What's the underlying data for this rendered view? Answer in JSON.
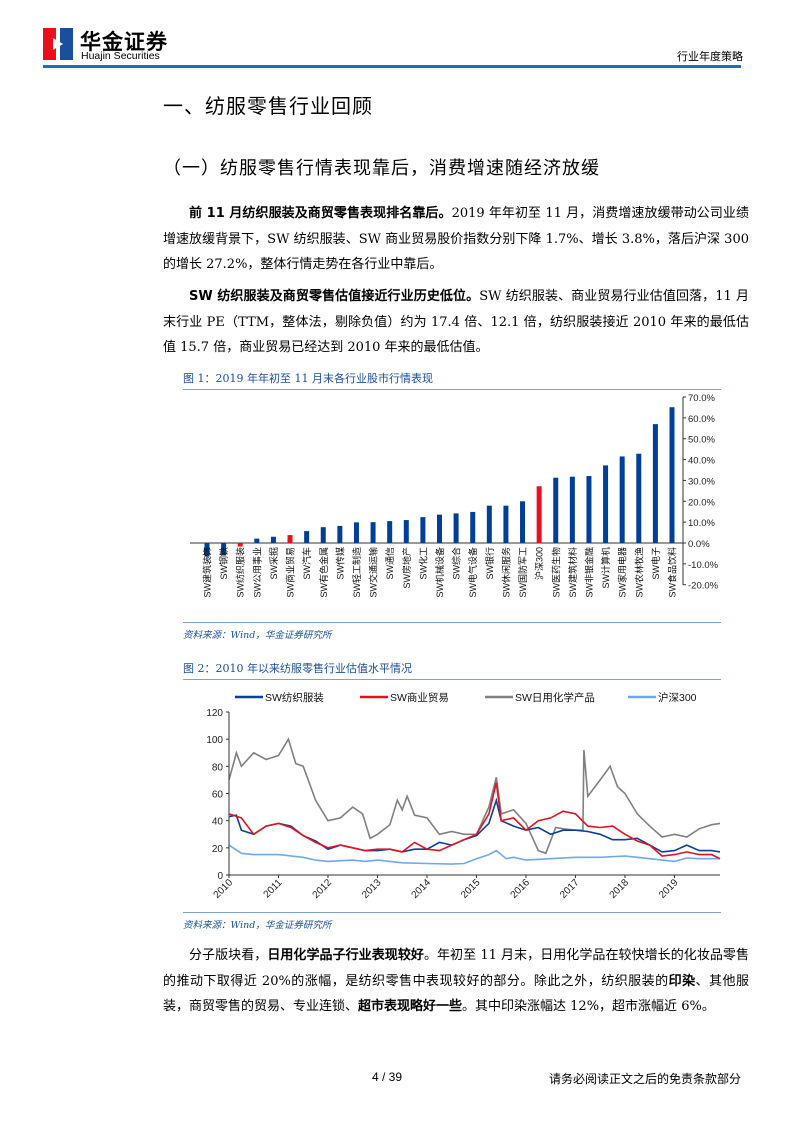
{
  "header": {
    "logo_cn": "华金证券",
    "logo_en": "Huajin Securities",
    "report_type": "行业年度策略"
  },
  "section_title": "一、纺服零售行业回顾",
  "subsection_title": "（一）纺服零售行情表现靠后，消费增速随经济放缓",
  "paragraphs": [
    {
      "segments": [
        {
          "text": "前 11 月纺织服装及商贸零售表现排名靠后。",
          "bold": true
        },
        {
          "text": "2019 年年初至 11 月，消费增速放缓带动公司业绩增速放缓背景下，SW 纺织服装、SW 商业贸易股价指数分别下降 1.7%、增长 3.8%，落后沪深 300 的增长 27.2%，整体行情走势在各行业中靠后。",
          "bold": false
        }
      ]
    },
    {
      "segments": [
        {
          "text": "SW 纺织服装及商贸零售估值接近行业历史低位。",
          "bold": true
        },
        {
          "text": "SW 纺织服装、商业贸易行业估值回落，11 月末行业 PE（TTM，整体法，剔除负值）约为 17.4 倍、12.1 倍，纺织服装接近 2010 年来的最低估值 15.7 倍，商业贸易已经达到 2010 年来的最低估值。",
          "bold": false
        }
      ]
    },
    {
      "segments": [
        {
          "text": "分子版块看，",
          "bold": false
        },
        {
          "text": "日用化学品子行业表现较好",
          "bold": true
        },
        {
          "text": "。年初至 11 月末，日用化学品在较快增长的化妆品零售的推动下取得近 20%的涨幅，是纺织零售中表现较好的部分。除此之外，纺织服装的",
          "bold": false
        },
        {
          "text": "印染",
          "bold": true
        },
        {
          "text": "、其他服装，商贸零售的贸易、专业连锁、",
          "bold": false
        },
        {
          "text": "超市表现略好一些",
          "bold": true
        },
        {
          "text": "。其中印染涨幅达 12%，超市涨幅近 6%。",
          "bold": false
        }
      ]
    }
  ],
  "figure1": {
    "caption": "图 1：2019 年年初至 11 月末各行业股市行情表现",
    "source": "资料来源：Wind，华金证券研究所"
  },
  "figure2": {
    "caption": "图 2：2010 年以来纺服零售行业估值水平情况",
    "source": "资料来源：Wind，华金证券研究所"
  },
  "footer": {
    "page": "4 / 39",
    "disclaimer": "请务必阅读正文之后的免责条款部分"
  },
  "colors": {
    "brand_blue": "#1a6fba",
    "bar_blue": "#003f98",
    "highlight_red": "#e8101c"
  },
  "chart_data": [
    {
      "type": "bar",
      "title": "",
      "ylim": [
        -20,
        70
      ],
      "y_tick_labels": [
        "70.0%",
        "60.0%",
        "50.0%",
        "40.0%",
        "30.0%",
        "20.0%",
        "10.0%",
        "0.0%",
        "-10.0%",
        "-20.0%"
      ],
      "y_ticks": [
        70,
        60,
        50,
        40,
        30,
        20,
        10,
        0,
        -10,
        -20
      ],
      "y_axis_position": "right",
      "grid": false,
      "categories": [
        "SW建筑装饰",
        "SW钢铁",
        "SW纺织服装",
        "SW公用事业",
        "SW采掘",
        "SW商业贸易",
        "SW汽车",
        "SW有色金属",
        "SW传媒",
        "SW轻工制造",
        "SW交通运输",
        "SW通信",
        "SW房地产",
        "SW化工",
        "SW机械设备",
        "SW综合",
        "SW电气设备",
        "SW银行",
        "SW休闲服务",
        "SW国防军工",
        "沪深300",
        "SW医药生物",
        "SW建筑材料",
        "SW非银金融",
        "SW计算机",
        "SW家用电器",
        "SW农林牧渔",
        "SW电子",
        "SW食品饮料"
      ],
      "values": [
        -6.5,
        -6.0,
        -1.7,
        2.1,
        3.0,
        3.8,
        5.7,
        7.6,
        8.2,
        9.9,
        10.0,
        10.5,
        11.0,
        12.4,
        13.6,
        14.2,
        14.9,
        17.9,
        17.9,
        20.0,
        27.2,
        31.3,
        31.8,
        32.1,
        37.2,
        41.5,
        42.8,
        57.0,
        65.1
      ],
      "highlighted": [
        "SW纺织服装",
        "SW商业贸易",
        "沪深300"
      ]
    },
    {
      "type": "line",
      "title": "",
      "ylim": [
        0,
        120
      ],
      "y_ticks": [
        0,
        20,
        40,
        60,
        80,
        100,
        120
      ],
      "xlim": [
        2010,
        2019.92
      ],
      "x_ticks": [
        2010,
        2011,
        2012,
        2013,
        2014,
        2015,
        2016,
        2017,
        2018,
        2019
      ],
      "legend": "top",
      "grid": false,
      "series": [
        {
          "name": "SW纺织服装",
          "color": "#0a3f9c",
          "x": [
            2010,
            2010.15,
            2010.25,
            2010.5,
            2010.75,
            2011,
            2011.25,
            2011.5,
            2011.75,
            2012,
            2012.25,
            2012.5,
            2012.75,
            2013,
            2013.25,
            2013.5,
            2013.75,
            2014,
            2014.25,
            2014.5,
            2014.75,
            2015,
            2015.25,
            2015.4,
            2015.5,
            2015.75,
            2016,
            2016.25,
            2016.5,
            2016.75,
            2017,
            2017.25,
            2017.5,
            2017.75,
            2018,
            2018.25,
            2018.5,
            2018.75,
            2019,
            2019.25,
            2019.5,
            2019.75,
            2019.92
          ],
          "y": [
            43,
            44,
            33,
            30,
            36,
            38,
            36,
            29,
            25,
            19,
            22,
            20,
            18,
            18,
            19,
            17,
            19,
            19,
            24,
            22,
            26,
            29,
            38,
            55,
            40,
            36,
            33,
            35,
            30,
            33,
            33,
            32,
            30,
            26,
            26,
            27,
            22,
            17,
            18,
            22,
            18,
            18,
            17
          ]
        },
        {
          "name": "SW商业贸易",
          "color": "#e8101c",
          "x": [
            2010,
            2010.25,
            2010.5,
            2010.75,
            2011,
            2011.25,
            2011.5,
            2011.75,
            2012,
            2012.25,
            2012.5,
            2012.75,
            2013,
            2013.25,
            2013.5,
            2013.75,
            2014,
            2014.25,
            2014.5,
            2014.75,
            2015,
            2015.25,
            2015.4,
            2015.5,
            2015.75,
            2016,
            2016.25,
            2016.5,
            2016.75,
            2017,
            2017.25,
            2017.5,
            2017.75,
            2018,
            2018.25,
            2018.5,
            2018.75,
            2019,
            2019.25,
            2019.5,
            2019.75,
            2019.92
          ],
          "y": [
            45,
            42,
            30,
            36,
            38,
            35,
            29,
            24,
            20,
            22,
            20,
            18,
            19,
            19,
            17,
            24,
            19,
            18,
            22,
            26,
            30,
            45,
            68,
            40,
            42,
            33,
            40,
            42,
            47,
            45,
            36,
            35,
            36,
            30,
            25,
            22,
            14,
            15,
            17,
            15,
            15,
            12
          ]
        },
        {
          "name": "SW日用化学产品",
          "color": "#808080",
          "x": [
            2010,
            2010.15,
            2010.25,
            2010.5,
            2010.75,
            2011,
            2011.2,
            2011.35,
            2011.5,
            2011.6,
            2011.75,
            2012,
            2012.25,
            2012.5,
            2012.7,
            2012.85,
            2013,
            2013.25,
            2013.4,
            2013.5,
            2013.6,
            2013.75,
            2014,
            2014.25,
            2014.5,
            2014.75,
            2015,
            2015.25,
            2015.4,
            2015.5,
            2015.75,
            2016,
            2016.25,
            2016.4,
            2016.6,
            2016.75,
            2017,
            2017.15,
            2017.17,
            2017.25,
            2017.5,
            2017.7,
            2017.85,
            2018,
            2018.25,
            2018.5,
            2018.75,
            2019,
            2019.25,
            2019.5,
            2019.75,
            2019.92
          ],
          "y": [
            70,
            90,
            80,
            90,
            85,
            88,
            100,
            82,
            80,
            70,
            55,
            40,
            42,
            50,
            45,
            27,
            30,
            37,
            55,
            48,
            58,
            44,
            42,
            30,
            32,
            30,
            30,
            50,
            72,
            45,
            48,
            38,
            18,
            16,
            35,
            34,
            33,
            33,
            92,
            58,
            70,
            80,
            65,
            60,
            45,
            36,
            28,
            30,
            28,
            34,
            37,
            38
          ]
        },
        {
          "name": "沪深300",
          "color": "#6fa8f0",
          "x": [
            2010,
            2010.25,
            2010.5,
            2010.75,
            2011,
            2011.5,
            2011.75,
            2012,
            2012.5,
            2012.75,
            2013,
            2013.5,
            2014,
            2014.5,
            2014.75,
            2015,
            2015.25,
            2015.4,
            2015.6,
            2015.75,
            2016,
            2016.5,
            2017,
            2017.5,
            2018,
            2018.25,
            2018.5,
            2018.75,
            2019,
            2019.25,
            2019.5,
            2019.75,
            2019.92
          ],
          "y": [
            22,
            16,
            15,
            15,
            15,
            13,
            11,
            10,
            11,
            10,
            11,
            9,
            8.5,
            8,
            8.5,
            12,
            15,
            18,
            12,
            13,
            11,
            12,
            13,
            13,
            14,
            13,
            12,
            11,
            10,
            12.5,
            12,
            12,
            12
          ]
        }
      ]
    }
  ]
}
